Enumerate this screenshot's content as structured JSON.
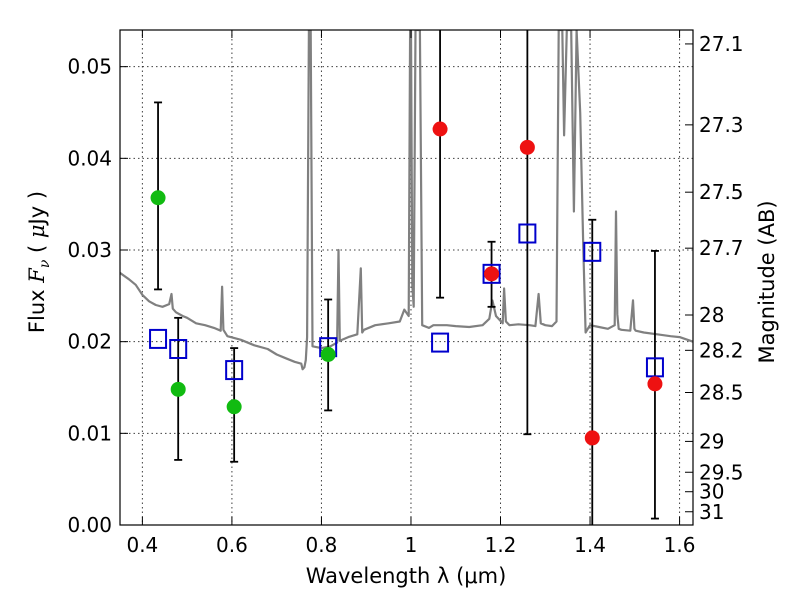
{
  "chart_data": {
    "type": "scatter",
    "xlabel": "Wavelength  λ (μm)",
    "ylabel": "Flux  F_ν  ( μJy )",
    "ylabel_parts": [
      "Flux  ",
      "F",
      "ν",
      "  ( ",
      "μ",
      "Jy )"
    ],
    "ylabel_right": "Magnitude (AB)",
    "xlim": [
      0.35,
      1.63
    ],
    "ylim": [
      0.0,
      0.054
    ],
    "grid": true,
    "x_ticks": [
      0.4,
      0.6,
      0.8,
      1.0,
      1.2,
      1.4,
      1.6
    ],
    "x_tick_labels": [
      "0.4",
      "0.6",
      "0.8",
      "1",
      "1.2",
      "1.4",
      "1.6"
    ],
    "y_ticks": [
      0.0,
      0.01,
      0.02,
      0.03,
      0.04,
      0.05
    ],
    "y_tick_labels": [
      "0.00",
      "0.01",
      "0.02",
      "0.03",
      "0.04",
      "0.05"
    ],
    "mag_ticks": [
      27.1,
      27.3,
      27.5,
      27.7,
      28,
      28.2,
      28.5,
      29,
      29.5,
      30,
      31
    ],
    "mag_tick_labels": [
      "27.1",
      "27.3",
      "27.5",
      "27.7",
      "28",
      "28.2",
      "28.5",
      "29",
      "29.5",
      "30",
      "31"
    ],
    "series": [
      {
        "name": "model-photometry",
        "marker": "square",
        "color": "#0000cc",
        "x": [
          0.435,
          0.48,
          0.605,
          0.815,
          1.065,
          1.18,
          1.26,
          1.405,
          1.545
        ],
        "y": [
          0.0203,
          0.0192,
          0.0169,
          0.0194,
          0.0199,
          0.0274,
          0.0318,
          0.0298,
          0.0172
        ]
      },
      {
        "name": "green-detections",
        "marker": "circle",
        "color": "#11bb11",
        "x": [
          0.435,
          0.48,
          0.605,
          0.815
        ],
        "y": [
          0.0357,
          0.0148,
          0.0129,
          0.0186
        ],
        "err_low": [
          0.0257,
          0.0071,
          0.0069,
          0.0125
        ],
        "err_high": [
          0.0461,
          0.0226,
          0.0193,
          0.0246
        ]
      },
      {
        "name": "red-detections",
        "marker": "circle",
        "color": "#ee1111",
        "x": [
          1.065,
          1.18,
          1.26,
          1.405,
          1.545
        ],
        "y": [
          0.0432,
          0.0274,
          0.0412,
          0.0095,
          0.0154
        ],
        "err_low": [
          0.0248,
          0.0238,
          0.0099,
          0.0,
          0.0007
        ],
        "err_high": [
          0.054,
          0.0309,
          0.054,
          0.0333,
          0.0299
        ]
      }
    ],
    "spectrum": {
      "name": "model-spectrum",
      "color": "#808080",
      "x": [
        0.35,
        0.37,
        0.385,
        0.4,
        0.415,
        0.43,
        0.445,
        0.46,
        0.465,
        0.468,
        0.475,
        0.49,
        0.5,
        0.52,
        0.54,
        0.56,
        0.575,
        0.578,
        0.581,
        0.59,
        0.62,
        0.65,
        0.68,
        0.7,
        0.72,
        0.74,
        0.755,
        0.758,
        0.762,
        0.765,
        0.768,
        0.772,
        0.776,
        0.78,
        0.8,
        0.82,
        0.835,
        0.838,
        0.841,
        0.86,
        0.88,
        0.888,
        0.891,
        0.895,
        0.92,
        0.95,
        0.975,
        0.985,
        0.995,
        0.998,
        1.0,
        1.003,
        1.006,
        1.01,
        1.02,
        1.025,
        1.04,
        1.05,
        1.08,
        1.1,
        1.13,
        1.16,
        1.175,
        1.182,
        1.19,
        1.205,
        1.208,
        1.212,
        1.22,
        1.24,
        1.265,
        1.278,
        1.285,
        1.29,
        1.3,
        1.315,
        1.325,
        1.33,
        1.335,
        1.338,
        1.342,
        1.348,
        1.352,
        1.358,
        1.364,
        1.37,
        1.378,
        1.385,
        1.39,
        1.4,
        1.42,
        1.44,
        1.455,
        1.458,
        1.461,
        1.464,
        1.47,
        1.49,
        1.496,
        1.499,
        1.502,
        1.52,
        1.55,
        1.58,
        1.6,
        1.63
      ],
      "y": [
        0.0275,
        0.0268,
        0.0262,
        0.0251,
        0.0244,
        0.024,
        0.0238,
        0.0241,
        0.0252,
        0.0236,
        0.0232,
        0.0228,
        0.0226,
        0.022,
        0.0218,
        0.0215,
        0.0212,
        0.026,
        0.0213,
        0.0206,
        0.0202,
        0.0196,
        0.0192,
        0.0186,
        0.0182,
        0.0178,
        0.0176,
        0.017,
        0.0172,
        0.018,
        0.0205,
        0.054,
        0.054,
        0.0195,
        0.0193,
        0.0195,
        0.0199,
        0.03,
        0.0201,
        0.0205,
        0.0208,
        0.028,
        0.021,
        0.0213,
        0.0218,
        0.022,
        0.0222,
        0.0235,
        0.0228,
        0.054,
        0.054,
        0.0262,
        0.0238,
        0.054,
        0.054,
        0.0218,
        0.0215,
        0.0218,
        0.0218,
        0.0217,
        0.0216,
        0.0218,
        0.0225,
        0.0245,
        0.0228,
        0.022,
        0.0258,
        0.0222,
        0.0218,
        0.0219,
        0.0218,
        0.0217,
        0.0252,
        0.022,
        0.0218,
        0.0217,
        0.0222,
        0.054,
        0.054,
        0.054,
        0.0425,
        0.054,
        0.054,
        0.054,
        0.0342,
        0.054,
        0.045,
        0.0302,
        0.021,
        0.0218,
        0.0216,
        0.0214,
        0.0218,
        0.0342,
        0.023,
        0.0214,
        0.0213,
        0.0212,
        0.0245,
        0.0214,
        0.0212,
        0.021,
        0.0208,
        0.0206,
        0.0205,
        0.02
      ]
    }
  }
}
